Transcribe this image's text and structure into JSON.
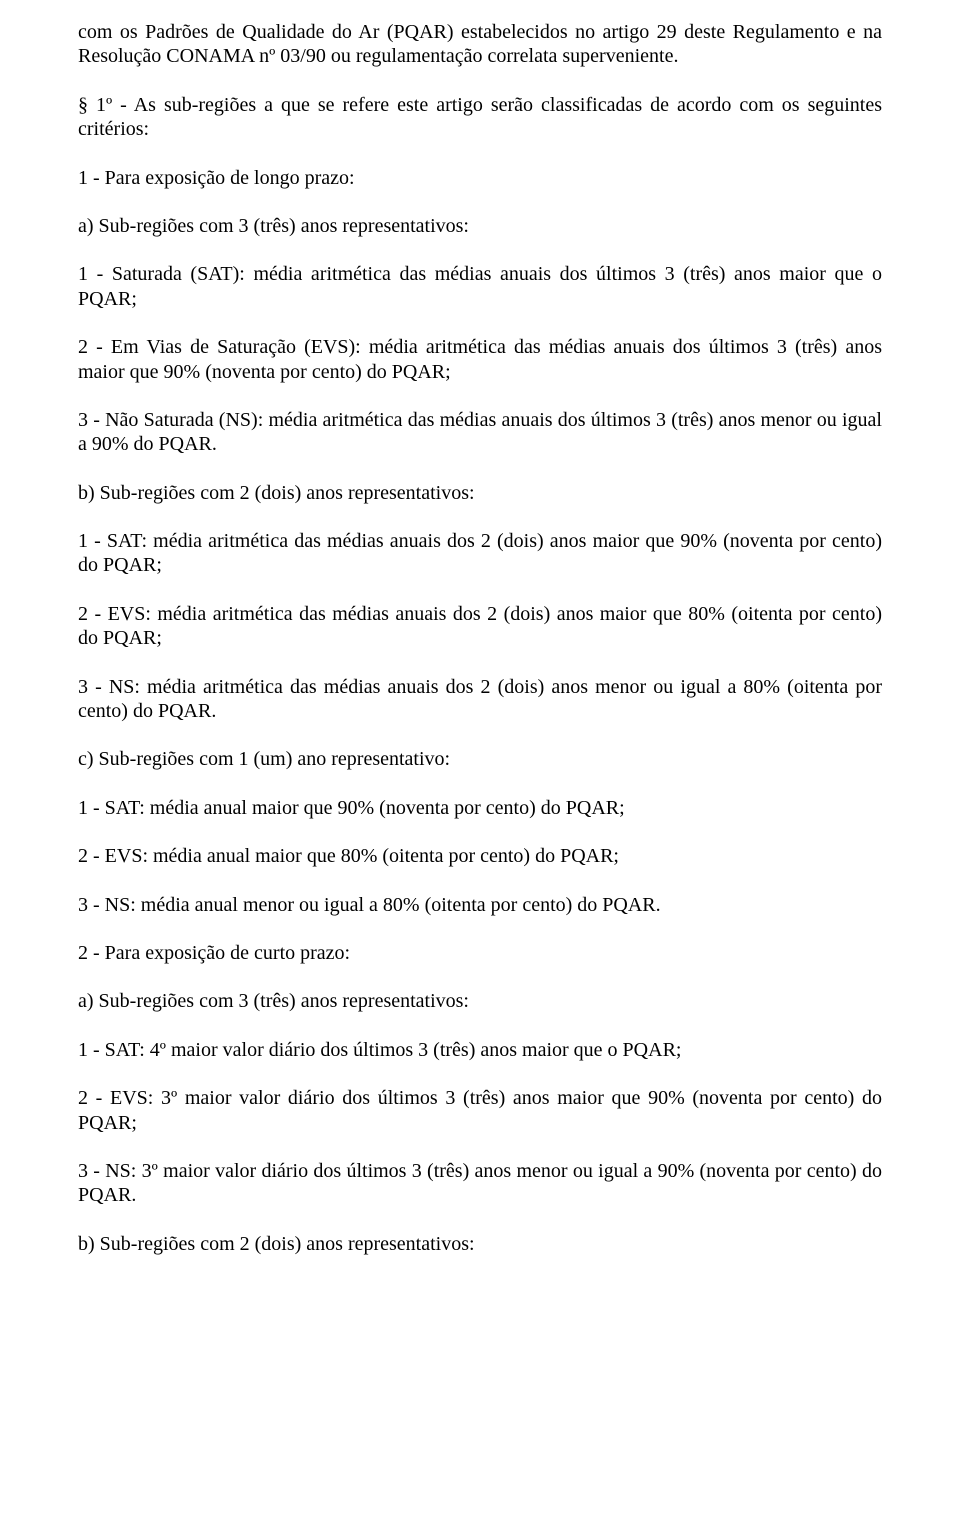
{
  "paragraphs": {
    "p0": "com os Padrões de Qualidade do Ar (PQAR) estabelecidos no artigo 29 deste Regulamento e na Resolução CONAMA nº 03/90 ou regulamentação correlata superveniente.",
    "p1": "§ 1º - As sub-regiões a que se refere este artigo serão classificadas de acordo com os seguintes critérios:",
    "p2": "1 - Para exposição de longo prazo:",
    "p3": "a) Sub-regiões com 3 (três) anos representativos:",
    "p4": "1 - Saturada (SAT): média aritmética das médias anuais dos últimos 3 (três) anos maior que o PQAR;",
    "p5": "2 - Em Vias de Saturação (EVS): média aritmética das médias anuais dos últimos 3 (três) anos maior que 90% (noventa por cento) do PQAR;",
    "p6": "3 - Não Saturada (NS): média aritmética das médias anuais dos últimos 3 (três) anos menor ou igual a 90% do PQAR.",
    "p7": "b) Sub-regiões com 2 (dois) anos representativos:",
    "p8": "1 - SAT: média aritmética das médias anuais dos 2 (dois) anos maior que 90% (noventa por cento) do PQAR;",
    "p9": "2 - EVS: média aritmética das médias anuais dos 2 (dois) anos maior que 80% (oitenta por cento) do PQAR;",
    "p10": "3 - NS: média aritmética das médias anuais dos 2 (dois) anos menor ou igual a 80% (oitenta por cento) do PQAR.",
    "p11": "c) Sub-regiões com 1 (um) ano representativo:",
    "p12": "1 - SAT: média anual maior que 90% (noventa por cento) do PQAR;",
    "p13": "2 - EVS: média anual maior que 80% (oitenta por cento) do PQAR;",
    "p14": "3 - NS: média anual menor ou igual a 80% (oitenta por cento) do PQAR.",
    "p15": "2 - Para exposição de curto prazo:",
    "p16": "a) Sub-regiões com 3 (três) anos representativos:",
    "p17": "1 - SAT: 4º maior valor diário dos últimos 3 (três) anos maior que o PQAR;",
    "p18": "2 - EVS: 3º maior valor diário dos últimos 3 (três) anos maior que 90% (noventa por cento) do PQAR;",
    "p19": "3 - NS: 3º maior valor diário dos últimos 3 (três) anos menor ou igual a 90% (noventa por cento) do PQAR.",
    "p20": "b) Sub-regiões com 2 (dois) anos representativos:"
  }
}
